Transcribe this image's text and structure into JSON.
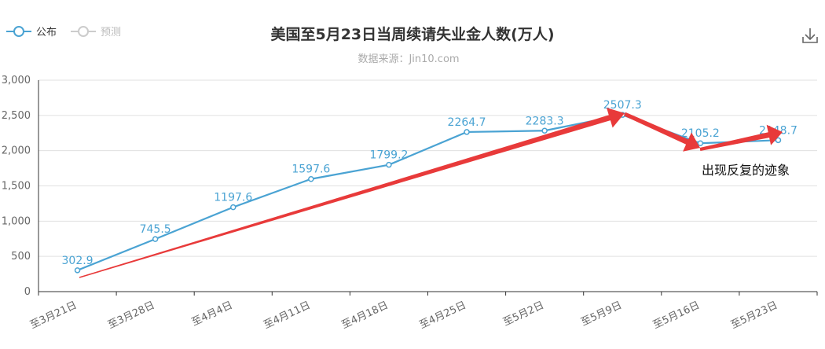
{
  "title": "美国至5月23日当周续请失业金人数(万人)",
  "subtitle": "数据来源：Jin10.com",
  "legend": [
    {
      "name": "公布",
      "color": "#4aa3d3",
      "active": true
    },
    {
      "name": "预测",
      "color": "#cccccc",
      "active": false
    }
  ],
  "download_icon": "download-icon",
  "chart_data": {
    "type": "line",
    "categories": [
      "至3月21日",
      "至3月28日",
      "至4月4日",
      "至4月11日",
      "至4月18日",
      "至4月25日",
      "至5月2日",
      "至5月9日",
      "至5月16日",
      "至5月23日"
    ],
    "series": [
      {
        "name": "公布",
        "values": [
          302.9,
          745.5,
          1197.6,
          1597.6,
          1799.2,
          2264.7,
          2283.3,
          2507.3,
          2105.2,
          2148.7
        ],
        "labels": [
          "302.9",
          "745.5",
          "1197.6",
          "1597.6",
          "1799.2",
          "2264.7",
          "2283.3",
          "2507.3",
          "2105.2",
          "2148.7"
        ],
        "color": "#4aa3d3"
      }
    ],
    "yticks": [
      "0",
      "500",
      "1,000",
      "1,500",
      "2,000",
      "2,500",
      "3,000"
    ],
    "ylim": [
      0,
      3000
    ],
    "grid": true,
    "annotation": "出现反复的迹象",
    "annotation_color": "#e83a3a"
  }
}
